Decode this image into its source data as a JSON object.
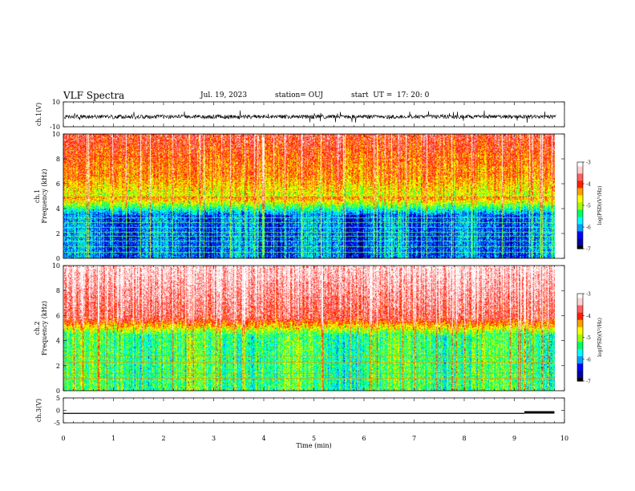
{
  "header": {
    "title": "VLF Spectra",
    "date": "Jul. 19, 2023",
    "station": "station= OUJ",
    "start": "start  UT =  17: 20: 0"
  },
  "colorbar_palette": [
    "#000000",
    "#0000a0",
    "#0000ff",
    "#00a0ff",
    "#00ffff",
    "#00ff60",
    "#a0ff00",
    "#ffff00",
    "#ffa000",
    "#ff2000",
    "#ff6060",
    "#ffd0d0",
    "#ffffff"
  ],
  "chart_data": [
    {
      "type": "line",
      "name": "ch1-waveform",
      "ylabel": "ch.1(V)",
      "ylim": [
        -10,
        10
      ],
      "y_ticks": [
        "10",
        "-10"
      ],
      "xlim": [
        0,
        10
      ]
    },
    {
      "type": "heatmap",
      "name": "ch1-spectrogram",
      "ylabel": "ch.1 Frequency (kHz)",
      "ylabel_line1": "ch.1",
      "ylabel_line2": "Frequency (kHz)",
      "ylim": [
        0,
        10
      ],
      "y_ticks": [
        "0",
        "2",
        "4",
        "6",
        "8",
        "10"
      ],
      "xlim": [
        0,
        9.8
      ],
      "colorbar": {
        "label": "log(PSD)(V²/Hz)",
        "range": [
          -7,
          -3
        ],
        "ticks": [
          "-3",
          "-4",
          "-5",
          "-6",
          "-7"
        ]
      }
    },
    {
      "type": "heatmap",
      "name": "ch2-spectrogram",
      "ylabel": "ch.2 Frequency (kHz)",
      "ylabel_line1": "ch.2",
      "ylabel_line2": "Frequency (kHz)",
      "ylim": [
        0,
        10
      ],
      "y_ticks": [
        "0",
        "2",
        "4",
        "6",
        "8",
        "10"
      ],
      "xlim": [
        0,
        9.8
      ],
      "colorbar": {
        "label": "log(PSD)(V²/Hz)",
        "range": [
          -7,
          -3
        ],
        "ticks": [
          "-3",
          "-4",
          "-5",
          "-6",
          "-7"
        ]
      }
    },
    {
      "type": "line",
      "name": "ch3-level",
      "ylabel": "ch.3(V)",
      "ylim": [
        -5,
        5
      ],
      "y_ticks": [
        "5",
        "0",
        "-5"
      ],
      "xlim": [
        0,
        10
      ],
      "series": [
        {
          "x": [
            0,
            9.2
          ],
          "y": [
            -1.2,
            -1.2
          ]
        },
        {
          "x": [
            9.2,
            9.8
          ],
          "y": [
            -0.8,
            -0.8
          ]
        }
      ]
    }
  ],
  "x_axis": {
    "label": "Time (min)",
    "ticks": [
      "0",
      "1",
      "2",
      "3",
      "4",
      "5",
      "6",
      "7",
      "8",
      "9",
      "10"
    ],
    "range": [
      0,
      10
    ]
  }
}
